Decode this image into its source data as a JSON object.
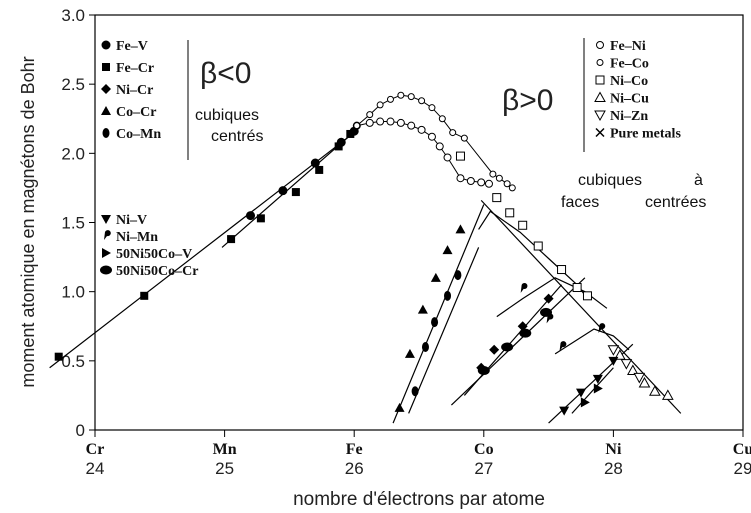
{
  "chart_data": {
    "type": "scatter",
    "xlabel": "nombre d'électrons par atome",
    "ylabel": "moment atomique en magnétons de Bohr",
    "xlim": [
      24,
      29
    ],
    "ylim": [
      0,
      3.0
    ],
    "y_ticks": [
      "0",
      "0.5",
      "1.0",
      "1.5",
      "2.0",
      "2.5",
      "3.0"
    ],
    "x_ticks": [
      {
        "x": 24,
        "element": "Cr",
        "number": "24"
      },
      {
        "x": 25,
        "element": "Mn",
        "number": "25"
      },
      {
        "x": 26,
        "element": "Fe",
        "number": "26"
      },
      {
        "x": 27,
        "element": "Co",
        "number": "27"
      },
      {
        "x": 28,
        "element": "Ni",
        "number": "28"
      },
      {
        "x": 29,
        "element": "Cu",
        "number": "29"
      }
    ],
    "annotations": {
      "beta_negative": "β<0",
      "beta_negative_line1": "cubiques",
      "beta_negative_line2": "centrés",
      "beta_positive": "β>0",
      "beta_positive_line1a": "cubiques",
      "beta_positive_line1b": "à",
      "beta_positive_line2a": "faces",
      "beta_positive_line2b": "centrées"
    },
    "legend_left_top": [
      "Fe–V",
      "Fe–Cr",
      "Ni–Cr",
      "Co–Cr",
      "Co–Mn"
    ],
    "legend_left_bottom": [
      "Ni–V",
      "Ni–Mn",
      "50Ni50Co–V",
      "50Ni50Co–Cr"
    ],
    "legend_right": [
      "Fe–Ni",
      "Fe–Co",
      "Ni–Co",
      "Ni–Cu",
      "Ni–Zn",
      "Pure metals"
    ],
    "series": [
      {
        "name": "Fe–Cr",
        "marker": "square-filled",
        "line": [
          [
            23.65,
            0.45
          ],
          [
            26.0,
            2.15
          ]
        ],
        "points": [
          [
            23.72,
            0.53
          ],
          [
            24.38,
            0.97
          ],
          [
            25.05,
            1.38
          ],
          [
            25.28,
            1.53
          ],
          [
            25.55,
            1.72
          ],
          [
            25.73,
            1.88
          ],
          [
            25.88,
            2.05
          ],
          [
            25.97,
            2.14
          ]
        ]
      },
      {
        "name": "Fe–V",
        "marker": "circle-filled",
        "line": [
          [
            24.98,
            1.32
          ],
          [
            26.03,
            2.18
          ]
        ],
        "points": [
          [
            25.2,
            1.55
          ],
          [
            25.45,
            1.73
          ],
          [
            25.7,
            1.93
          ],
          [
            25.9,
            2.08
          ],
          [
            26.0,
            2.16
          ]
        ]
      },
      {
        "name": "Fe–Ni",
        "marker": "circle-open",
        "points": [
          [
            26.02,
            2.2
          ],
          [
            26.12,
            2.22
          ],
          [
            26.2,
            2.23
          ],
          [
            26.28,
            2.23
          ],
          [
            26.36,
            2.22
          ],
          [
            26.44,
            2.2
          ],
          [
            26.52,
            2.17
          ],
          [
            26.6,
            2.12
          ],
          [
            26.66,
            2.05
          ],
          [
            26.72,
            1.97
          ],
          [
            26.82,
            1.82
          ],
          [
            26.9,
            1.8
          ],
          [
            26.98,
            1.79
          ],
          [
            27.04,
            1.78
          ]
        ]
      },
      {
        "name": "Fe–Co",
        "marker": "circle-small",
        "points": [
          [
            26.02,
            2.2
          ],
          [
            26.12,
            2.28
          ],
          [
            26.2,
            2.35
          ],
          [
            26.28,
            2.39
          ],
          [
            26.36,
            2.42
          ],
          [
            26.44,
            2.41
          ],
          [
            26.52,
            2.38
          ],
          [
            26.6,
            2.33
          ],
          [
            26.68,
            2.25
          ],
          [
            26.76,
            2.15
          ],
          [
            26.85,
            2.11
          ],
          [
            27.07,
            1.85
          ],
          [
            27.12,
            1.82
          ],
          [
            27.18,
            1.78
          ],
          [
            27.22,
            1.75
          ]
        ]
      },
      {
        "name": "Ni–Co",
        "marker": "square-open",
        "line": [
          [
            26.98,
            1.66
          ],
          [
            28.52,
            0.12
          ]
        ],
        "points": [
          [
            26.82,
            1.98
          ],
          [
            27.1,
            1.68
          ],
          [
            27.2,
            1.57
          ],
          [
            27.3,
            1.48
          ],
          [
            27.42,
            1.33
          ],
          [
            27.6,
            1.16
          ],
          [
            27.72,
            1.03
          ],
          [
            27.8,
            0.97
          ]
        ]
      },
      {
        "name": "Ni–Cu",
        "marker": "triangle-open",
        "points": [
          [
            28.05,
            0.54
          ],
          [
            28.15,
            0.43
          ],
          [
            28.24,
            0.34
          ],
          [
            28.32,
            0.28
          ],
          [
            28.42,
            0.25
          ]
        ]
      },
      {
        "name": "Ni–Zn",
        "marker": "triangle-down-open",
        "points": [
          [
            28.0,
            0.58
          ],
          [
            28.1,
            0.48
          ],
          [
            28.2,
            0.38
          ]
        ]
      },
      {
        "name": "Pure metals",
        "marker": "cross",
        "points": [
          [
            26.0,
            2.22
          ],
          [
            27.0,
            1.72
          ],
          [
            28.0,
            0.6
          ]
        ]
      },
      {
        "name": "Co–Cr",
        "marker": "triangle-filled",
        "line": [
          [
            26.3,
            0.05
          ],
          [
            27.0,
            1.63
          ]
        ],
        "points": [
          [
            26.35,
            0.16
          ],
          [
            26.43,
            0.55
          ],
          [
            26.53,
            0.87
          ],
          [
            26.63,
            1.1
          ],
          [
            26.72,
            1.3
          ],
          [
            26.82,
            1.45
          ]
        ]
      },
      {
        "name": "Co–Mn",
        "marker": "circle-half",
        "line": [
          [
            26.42,
            0.12
          ],
          [
            26.96,
            1.32
          ]
        ],
        "points": [
          [
            26.47,
            0.28
          ],
          [
            26.55,
            0.6
          ],
          [
            26.62,
            0.78
          ],
          [
            26.72,
            0.97
          ],
          [
            26.8,
            1.12
          ]
        ]
      },
      {
        "name": "Ni–Cr",
        "marker": "diamond-filled",
        "line": [
          [
            26.85,
            0.25
          ],
          [
            27.6,
            1.05
          ]
        ],
        "points": [
          [
            26.98,
            0.45
          ],
          [
            27.08,
            0.58
          ],
          [
            27.3,
            0.75
          ],
          [
            27.5,
            0.95
          ]
        ]
      },
      {
        "name": "50Ni50Co–Cr",
        "marker": "ellipse-filled",
        "line": [
          [
            26.75,
            0.18
          ],
          [
            27.78,
            1.1
          ]
        ],
        "points": [
          [
            27.0,
            0.43
          ],
          [
            27.18,
            0.6
          ],
          [
            27.32,
            0.7
          ],
          [
            27.48,
            0.85
          ]
        ]
      },
      {
        "name": "Ni–Mn",
        "marker": "comma",
        "points": [
          [
            27.3,
            1.02
          ],
          [
            27.5,
            0.8
          ],
          [
            27.6,
            0.6
          ],
          [
            27.9,
            0.73
          ]
        ]
      },
      {
        "name": "Ni–V",
        "marker": "triangle-down-filled",
        "line": [
          [
            27.5,
            0.05
          ],
          [
            28.15,
            0.62
          ]
        ],
        "points": [
          [
            27.62,
            0.14
          ],
          [
            27.75,
            0.27
          ],
          [
            27.88,
            0.37
          ],
          [
            28.0,
            0.5
          ]
        ]
      },
      {
        "name": "50Ni50Co–V",
        "marker": "triangle-right-filled",
        "line": [
          [
            27.68,
            0.12
          ],
          [
            28.0,
            0.45
          ]
        ],
        "points": [
          [
            27.78,
            0.2
          ],
          [
            27.88,
            0.3
          ]
        ]
      }
    ],
    "extra_curves": [
      [
        [
          26.96,
          1.45
        ],
        [
          27.05,
          1.58
        ],
        [
          27.28,
          1.43
        ],
        [
          27.5,
          1.24
        ],
        [
          27.72,
          1.05
        ],
        [
          27.8,
          0.95
        ]
      ],
      [
        [
          27.1,
          0.82
        ],
        [
          27.3,
          0.95
        ],
        [
          27.55,
          1.1
        ],
        [
          27.78,
          1.0
        ],
        [
          27.95,
          0.88
        ]
      ],
      [
        [
          27.55,
          0.55
        ],
        [
          27.85,
          0.73
        ],
        [
          28.0,
          0.68
        ],
        [
          28.12,
          0.58
        ]
      ]
    ]
  }
}
